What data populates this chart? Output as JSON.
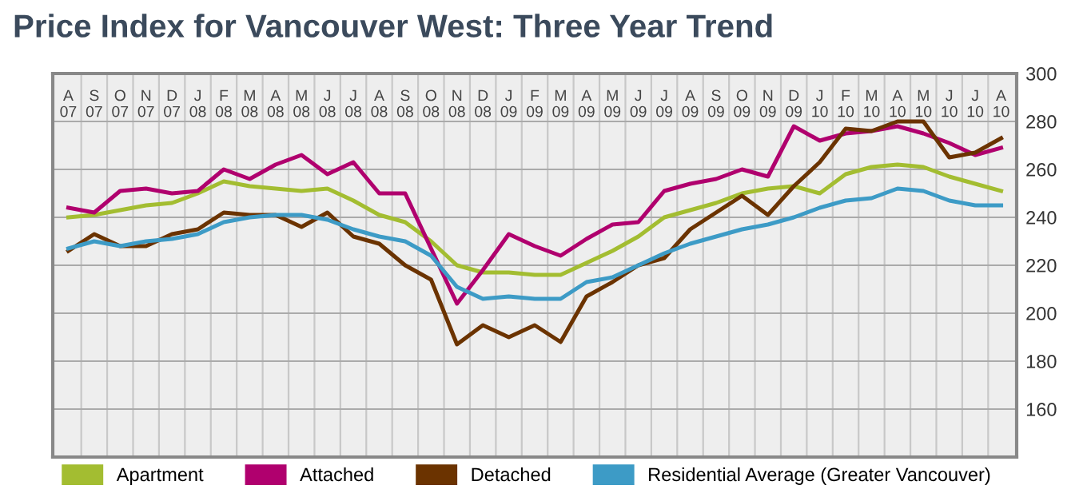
{
  "chart_data": {
    "type": "line",
    "title": "Price Index for Vancouver West: Three Year Trend",
    "categories": [
      "A\n07",
      "S\n07",
      "O\n07",
      "N\n07",
      "D\n07",
      "J\n08",
      "F\n08",
      "M\n08",
      "A\n08",
      "M\n08",
      "J\n08",
      "J\n08",
      "A\n08",
      "S\n08",
      "O\n08",
      "N\n08",
      "D\n08",
      "J\n09",
      "F\n09",
      "M\n09",
      "A\n09",
      "M\n09",
      "J\n09",
      "J\n09",
      "A\n09",
      "S\n09",
      "O\n09",
      "N\n09",
      "D\n09",
      "J\n10",
      "F\n10",
      "M\n10",
      "A\n10",
      "M\n10",
      "J\n10",
      "J\n10",
      "A\n10"
    ],
    "series": [
      {
        "name": "Apartment",
        "color": "#a3bd31",
        "values": [
          240,
          241,
          243,
          245,
          246,
          250,
          255,
          253,
          252,
          251,
          252,
          247,
          241,
          238,
          230,
          220,
          217,
          217,
          216,
          216,
          221,
          226,
          232,
          240,
          243,
          246,
          250,
          252,
          253,
          250,
          258,
          261,
          262,
          261,
          257,
          254,
          251
        ]
      },
      {
        "name": "Attached",
        "color": "#b0006e",
        "values": [
          244,
          242,
          251,
          252,
          250,
          251,
          260,
          256,
          262,
          266,
          258,
          263,
          250,
          250,
          227,
          204,
          218,
          233,
          228,
          224,
          231,
          237,
          238,
          251,
          254,
          256,
          260,
          257,
          278,
          272,
          275,
          276,
          278,
          275,
          271,
          266,
          269
        ]
      },
      {
        "name": "Detached",
        "color": "#6b3300",
        "values": [
          226,
          233,
          228,
          228,
          233,
          235,
          242,
          241,
          241,
          236,
          242,
          232,
          229,
          220,
          214,
          187,
          195,
          190,
          195,
          188,
          207,
          213,
          220,
          223,
          235,
          242,
          249,
          241,
          253,
          263,
          277,
          276,
          280,
          280,
          265,
          267,
          273
        ]
      },
      {
        "name": "Residential Average (Greater Vancouver)",
        "color": "#3d9bc6",
        "values": [
          227,
          230,
          228,
          230,
          231,
          233,
          238,
          240,
          241,
          241,
          239,
          235,
          232,
          230,
          224,
          211,
          206,
          207,
          206,
          206,
          213,
          215,
          220,
          225,
          229,
          232,
          235,
          237,
          240,
          244,
          247,
          248,
          252,
          251,
          247,
          245,
          245
        ]
      }
    ],
    "ylim": [
      140,
      300
    ],
    "yticks": [
      160,
      180,
      200,
      220,
      240,
      260,
      280,
      300
    ],
    "grid": true,
    "legend": "bottom",
    "marker": "none",
    "line_style": "solid"
  }
}
